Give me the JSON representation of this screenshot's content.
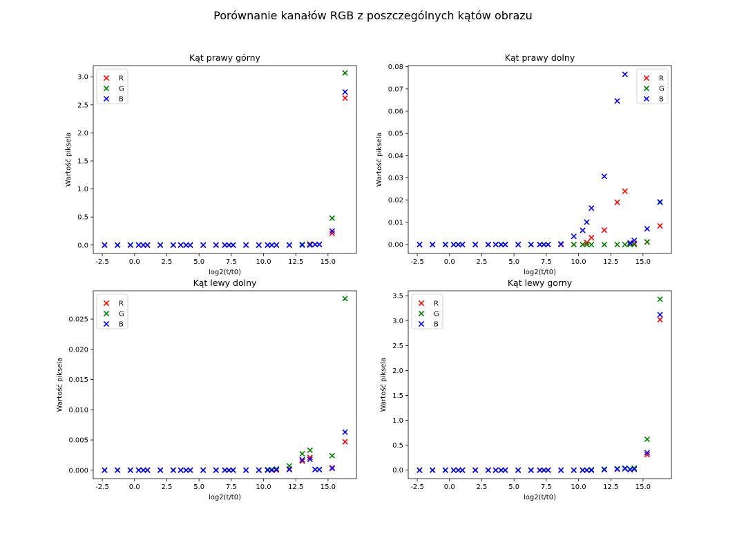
{
  "figure": {
    "title": "Porównanie kanałów RGB z poszczególnych kątów obrazu"
  },
  "colors": {
    "R": "#ff0000",
    "G": "#008000",
    "B": "#0000ff"
  },
  "chart_data": [
    {
      "type": "scatter",
      "title": "Kąt prawy górny",
      "xlabel": "log2(t/t0)",
      "ylabel": "Wartość piksela",
      "xlim": [
        -3.2,
        17.2
      ],
      "ylim": [
        -0.15,
        3.2
      ],
      "xticks": [
        "-2.5",
        "0.0",
        "2.5",
        "5.0",
        "7.5",
        "10.0",
        "12.5",
        "15.0"
      ],
      "xtick_values": [
        -2.5,
        0,
        2.5,
        5,
        7.5,
        10,
        12.5,
        15
      ],
      "yticks": [
        "0.0",
        "0.5",
        "1.0",
        "1.5",
        "2.0",
        "2.5",
        "3.0"
      ],
      "ytick_values": [
        0,
        0.5,
        1,
        1.5,
        2,
        2.5,
        3
      ],
      "legend": "upper-left",
      "x": [
        -2.32,
        -1.32,
        -0.32,
        0.32,
        0.68,
        1.0,
        2.0,
        3.0,
        3.58,
        4.0,
        4.32,
        5.32,
        6.32,
        7.0,
        7.32,
        7.64,
        8.64,
        9.64,
        10.32,
        10.64,
        11.0,
        12.0,
        13.0,
        13.6,
        14.0,
        14.32,
        15.32,
        16.32
      ],
      "series": [
        {
          "name": "R",
          "values": [
            0,
            0,
            0,
            0,
            0,
            0,
            0,
            0,
            0,
            0,
            0,
            0,
            0,
            0,
            0,
            0,
            0,
            0,
            0,
            0,
            0,
            0,
            0.01,
            0.02,
            0.01,
            0.01,
            0.21,
            2.62
          ]
        },
        {
          "name": "G",
          "values": [
            0,
            0,
            0,
            0,
            0,
            0,
            0,
            0,
            0,
            0,
            0,
            0,
            0,
            0,
            0,
            0,
            0,
            0,
            0,
            0,
            0,
            0,
            0.01,
            0.01,
            0.01,
            0.01,
            0.48,
            3.07
          ]
        },
        {
          "name": "B",
          "values": [
            0,
            0,
            0,
            0,
            0,
            0,
            0,
            0,
            0,
            0,
            0,
            0,
            0,
            0,
            0,
            0,
            0,
            0,
            0,
            0,
            0,
            0,
            0,
            0,
            0.01,
            0.01,
            0.25,
            2.73
          ]
        }
      ]
    },
    {
      "type": "scatter",
      "title": "Kąt prawy dolny",
      "xlabel": "log2(t/t0)",
      "ylabel": "Wartość piksela",
      "xlim": [
        -3.2,
        17.2
      ],
      "ylim": [
        -0.004,
        0.0805
      ],
      "xticks": [
        "-2.5",
        "0.0",
        "2.5",
        "5.0",
        "7.5",
        "10.0",
        "12.5",
        "15.0"
      ],
      "xtick_values": [
        -2.5,
        0,
        2.5,
        5,
        7.5,
        10,
        12.5,
        15
      ],
      "yticks": [
        "0.00",
        "0.01",
        "0.02",
        "0.03",
        "0.04",
        "0.05",
        "0.06",
        "0.07",
        "0.08"
      ],
      "ytick_values": [
        0,
        0.01,
        0.02,
        0.03,
        0.04,
        0.05,
        0.06,
        0.07,
        0.08
      ],
      "legend": "upper-right",
      "x": [
        -2.32,
        -1.32,
        -0.32,
        0.32,
        0.68,
        1.0,
        2.0,
        3.0,
        3.58,
        4.0,
        4.32,
        5.32,
        6.32,
        7.0,
        7.32,
        7.64,
        8.64,
        9.64,
        10.32,
        10.64,
        11.0,
        12.0,
        13.0,
        13.6,
        14.0,
        14.32,
        15.32,
        16.32
      ],
      "series": [
        {
          "name": "R",
          "values": [
            0,
            0,
            0,
            0,
            0,
            0,
            0,
            0,
            0,
            0,
            0,
            0,
            0,
            0,
            0,
            0,
            0,
            0,
            0,
            0.0009,
            0.0031,
            0.0065,
            0.019,
            0.024,
            0.0005,
            0.0005,
            0.0011,
            0.0084
          ]
        },
        {
          "name": "G",
          "values": [
            0,
            0,
            0,
            0,
            0,
            0,
            0,
            0,
            0,
            0,
            0,
            0,
            0,
            0,
            0,
            0,
            0.0003,
            0,
            0,
            0,
            0,
            0,
            0,
            0,
            0,
            0,
            0.0012,
            0.019
          ]
        },
        {
          "name": "B",
          "values": [
            0,
            0,
            0,
            0,
            0,
            0,
            0,
            0,
            0,
            0,
            0,
            0,
            0,
            0,
            0,
            0,
            0.0002,
            0.0037,
            0.0064,
            0.0101,
            0.0164,
            0.0307,
            0.0646,
            0.0766,
            0.0008,
            0.0019,
            0.0071,
            0.0192
          ]
        }
      ]
    },
    {
      "type": "scatter",
      "title": "Kąt lewy dolny",
      "xlabel": "log2(t/t0)",
      "ylabel": "Wartość piksela",
      "xlim": [
        -3.2,
        17.2
      ],
      "ylim": [
        -0.0014,
        0.0297
      ],
      "xticks": [
        "-2.5",
        "0.0",
        "2.5",
        "5.0",
        "7.5",
        "10.0",
        "12.5",
        "15.0"
      ],
      "xtick_values": [
        -2.5,
        0,
        2.5,
        5,
        7.5,
        10,
        12.5,
        15
      ],
      "yticks": [
        "0.000",
        "0.005",
        "0.010",
        "0.015",
        "0.020",
        "0.025"
      ],
      "ytick_values": [
        0,
        0.005,
        0.01,
        0.015,
        0.02,
        0.025
      ],
      "legend": "upper-left",
      "x": [
        -2.32,
        -1.32,
        -0.32,
        0.32,
        0.68,
        1.0,
        2.0,
        3.0,
        3.58,
        4.0,
        4.32,
        5.32,
        6.32,
        7.0,
        7.32,
        7.64,
        8.64,
        9.64,
        10.32,
        10.64,
        11.0,
        12.0,
        13.0,
        13.6,
        14.0,
        14.32,
        15.32,
        16.32
      ],
      "series": [
        {
          "name": "R",
          "values": [
            0,
            0,
            0,
            0,
            0,
            0,
            0,
            0,
            0,
            0,
            0,
            0,
            0,
            0,
            0,
            0,
            0,
            0,
            0,
            0,
            0,
            0.0002,
            0.0015,
            0.0021,
            0.0001,
            0.0001,
            0.0004,
            0.0047
          ]
        },
        {
          "name": "G",
          "values": [
            0,
            0,
            0,
            0,
            0,
            0,
            0,
            0,
            0,
            0,
            0,
            0,
            0,
            0,
            0,
            0,
            0,
            0,
            0.0001,
            0.0001,
            0.0002,
            0.0007,
            0.0027,
            0.0033,
            0.0001,
            0.0001,
            0.0024,
            0.0284
          ]
        },
        {
          "name": "B",
          "values": [
            0,
            0,
            0,
            0,
            0,
            0,
            0,
            0,
            0,
            0,
            0,
            0,
            0,
            0,
            0,
            0,
            0,
            0,
            0,
            0,
            0.0001,
            0.0001,
            0.0017,
            0.0018,
            0.0001,
            0.0001,
            0.0003,
            0.0063
          ]
        }
      ]
    },
    {
      "type": "scatter",
      "title": "Kąt lewy gorny",
      "xlabel": "log2(t/t0)",
      "ylabel": "Wartość piksela",
      "xlim": [
        -3.2,
        17.2
      ],
      "ylim": [
        -0.17,
        3.6
      ],
      "xticks": [
        "-2.5",
        "0.0",
        "2.5",
        "5.0",
        "7.5",
        "10.0",
        "12.5",
        "15.0"
      ],
      "xtick_values": [
        -2.5,
        0,
        2.5,
        5,
        7.5,
        10,
        12.5,
        15
      ],
      "yticks": [
        "0.0",
        "0.5",
        "1.0",
        "1.5",
        "2.0",
        "2.5",
        "3.0",
        "3.5"
      ],
      "ytick_values": [
        0,
        0.5,
        1,
        1.5,
        2,
        2.5,
        3,
        3.5
      ],
      "legend": "upper-left",
      "x": [
        -2.32,
        -1.32,
        -0.32,
        0.32,
        0.68,
        1.0,
        2.0,
        3.0,
        3.58,
        4.0,
        4.32,
        5.32,
        6.32,
        7.0,
        7.32,
        7.64,
        8.64,
        9.64,
        10.32,
        10.64,
        11.0,
        12.0,
        13.0,
        13.6,
        14.0,
        14.32,
        15.32,
        16.32
      ],
      "series": [
        {
          "name": "R",
          "values": [
            0,
            0,
            0,
            0,
            0,
            0,
            0,
            0,
            0,
            0,
            0,
            0,
            0,
            0,
            0,
            0,
            0,
            0,
            0,
            0,
            0,
            0.01,
            0.02,
            0.03,
            0.01,
            0.02,
            0.31,
            3.02
          ]
        },
        {
          "name": "G",
          "values": [
            0,
            0,
            0,
            0,
            0,
            0,
            0,
            0,
            0,
            0,
            0,
            0,
            0,
            0,
            0,
            0,
            0,
            0,
            0,
            0,
            0.01,
            0.02,
            0.03,
            0.04,
            0.02,
            0.04,
            0.62,
            3.43
          ]
        },
        {
          "name": "B",
          "values": [
            0,
            0,
            0,
            0,
            0,
            0,
            0,
            0,
            0,
            0,
            0,
            0,
            0,
            0,
            0,
            0,
            0,
            0,
            0,
            0,
            0,
            0.01,
            0.02,
            0.03,
            0.01,
            0.02,
            0.35,
            3.12
          ]
        }
      ]
    }
  ]
}
